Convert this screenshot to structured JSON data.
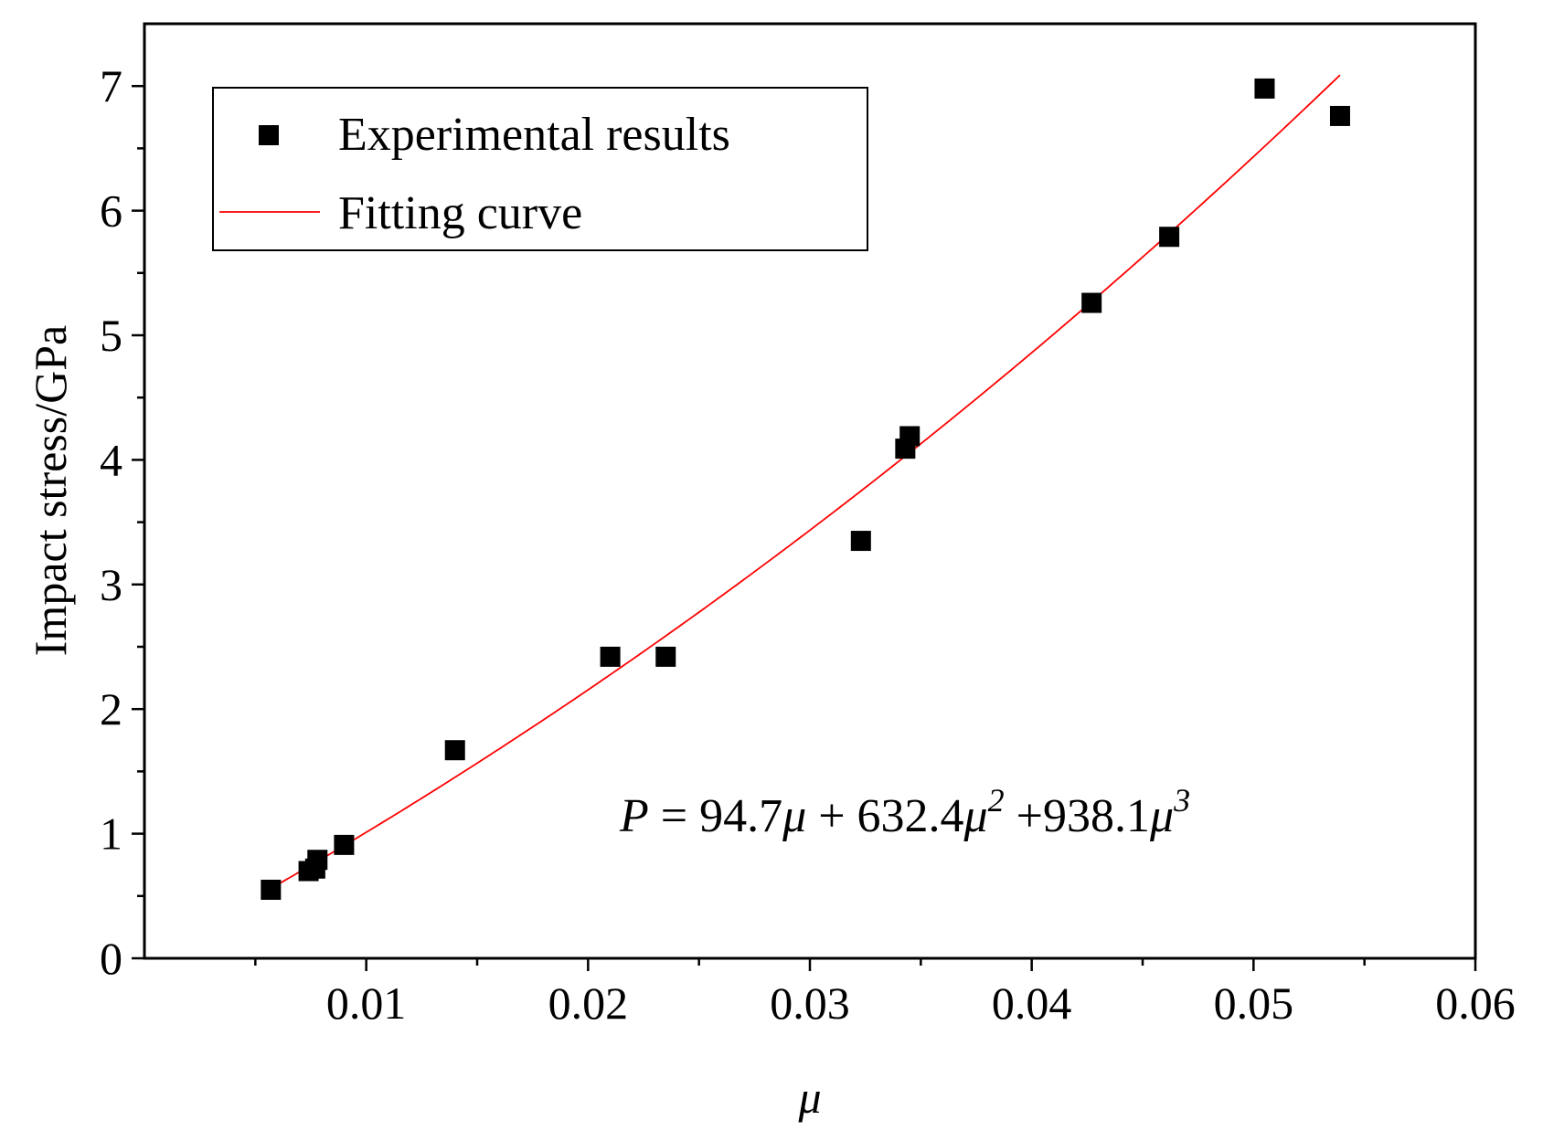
{
  "chart_data": {
    "type": "scatter",
    "xlabel": "μ",
    "ylabel": "Impact stress/GPa",
    "xlim": [
      0,
      0.06
    ],
    "ylim": [
      0,
      7.5
    ],
    "x_major_ticks": [
      0.01,
      0.02,
      0.03,
      0.04,
      0.05,
      0.06
    ],
    "x_tick_labels": [
      "0.01",
      "0.02",
      "0.03",
      "0.04",
      "0.05",
      "0.06"
    ],
    "x_minor_ticks": [
      0.005,
      0.015,
      0.025,
      0.035,
      0.045,
      0.055
    ],
    "y_major_ticks": [
      0,
      1,
      2,
      3,
      4,
      5,
      6,
      7
    ],
    "y_tick_labels": [
      "0",
      "1",
      "2",
      "3",
      "4",
      "5",
      "6",
      "7"
    ],
    "y_minor_ticks": [
      0.5,
      1.5,
      2.5,
      3.5,
      4.5,
      5.5,
      6.5
    ],
    "grid": false,
    "legend": {
      "position": "top-left",
      "entries": [
        {
          "label": "Experimental results",
          "marker": "square",
          "color": "#000000"
        },
        {
          "label": "Fitting curve",
          "marker": "line",
          "color": "#ff0000"
        }
      ]
    },
    "series": [
      {
        "name": "Experimental results",
        "kind": "scatter",
        "color": "#000000",
        "points": [
          {
            "x": 0.0057,
            "y": 0.55
          },
          {
            "x": 0.0074,
            "y": 0.7
          },
          {
            "x": 0.0077,
            "y": 0.72
          },
          {
            "x": 0.0078,
            "y": 0.79
          },
          {
            "x": 0.009,
            "y": 0.91
          },
          {
            "x": 0.014,
            "y": 1.67
          },
          {
            "x": 0.021,
            "y": 2.42
          },
          {
            "x": 0.0235,
            "y": 2.42
          },
          {
            "x": 0.0323,
            "y": 3.35
          },
          {
            "x": 0.0343,
            "y": 4.09
          },
          {
            "x": 0.0345,
            "y": 4.19
          },
          {
            "x": 0.0427,
            "y": 5.26
          },
          {
            "x": 0.0462,
            "y": 5.79
          },
          {
            "x": 0.0505,
            "y": 6.98
          },
          {
            "x": 0.0539,
            "y": 6.76
          }
        ]
      },
      {
        "name": "Fitting curve",
        "kind": "line",
        "color": "#ff0000",
        "x_range": [
          0.0053,
          0.0539
        ],
        "coefficients": {
          "a1": 94.7,
          "a2": 632.4,
          "a3": 938.1
        }
      }
    ],
    "annotations": [
      {
        "id": "equation",
        "parts": [
          "P",
          " = 94.7",
          "μ",
          " + 632.4",
          "μ",
          "2",
          " +938.1",
          "μ",
          "3"
        ]
      }
    ]
  }
}
